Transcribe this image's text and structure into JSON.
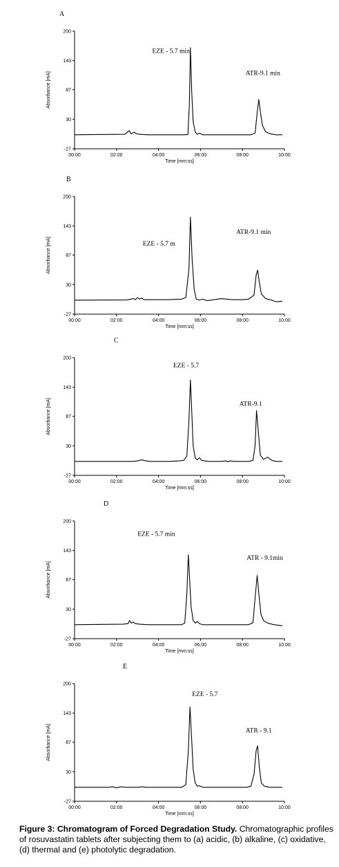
{
  "chart_data": [
    {
      "type": "line",
      "panel_label": "A",
      "xlabel": "Time [mm:ss]",
      "ylabel": "Absorbance [mA]",
      "x_ticks": [
        "00:00",
        "02:00",
        "04:00",
        "06:00",
        "08:00",
        "10:00"
      ],
      "y_ticks": [
        "200",
        "143",
        "87",
        "30",
        "-27"
      ],
      "xlim": [
        0,
        10
      ],
      "ylim": [
        -27,
        200
      ],
      "annotations": [
        {
          "text": "EZE - 5.7 min",
          "x": 3.7,
          "y": 158
        },
        {
          "text": "ATR-9.1 min",
          "x": 8.15,
          "y": 115
        }
      ],
      "series": [
        {
          "x": [
            0,
            2.4,
            2.6,
            2.7,
            2.85,
            2.95,
            3.1,
            3.5,
            4.5,
            5.2,
            5.4,
            5.47,
            5.52,
            5.58,
            5.65,
            5.75,
            5.85,
            5.95,
            6.1,
            6.5,
            7.5,
            8.4,
            8.6,
            8.72,
            8.78,
            8.85,
            8.95,
            9.1,
            9.3,
            9.6,
            9.9
          ],
          "y": [
            0,
            1,
            8,
            2,
            5,
            2,
            1,
            0,
            0,
            0,
            0.5,
            60,
            168,
            85,
            25,
            5,
            1,
            3,
            0,
            0,
            0,
            0,
            3,
            50,
            68,
            45,
            18,
            6,
            2,
            0,
            0
          ]
        }
      ]
    },
    {
      "type": "line",
      "panel_label": "B",
      "xlabel": "Time [mm:ss]",
      "ylabel": "Absorbance [mA]",
      "x_ticks": [
        "00:00",
        "02:00",
        "04:00",
        "06:00",
        "08:00",
        "10:00"
      ],
      "y_ticks": [
        "200",
        "143",
        "87",
        "30",
        "-27"
      ],
      "xlim": [
        0,
        10
      ],
      "ylim": [
        -27,
        200
      ],
      "annotations": [
        {
          "text": "EZE - 5.7 m",
          "x": 3.25,
          "y": 105
        },
        {
          "text": "ATR-9.1 min",
          "x": 7.7,
          "y": 128
        }
      ],
      "series": [
        {
          "x": [
            0,
            2.5,
            2.8,
            2.9,
            3.0,
            3.1,
            3.2,
            3.3,
            3.5,
            4.5,
            5.1,
            5.3,
            5.45,
            5.52,
            5.6,
            5.7,
            5.8,
            5.95,
            6.1,
            6.3,
            7.0,
            7.5,
            8.0,
            8.3,
            8.55,
            8.65,
            8.72,
            8.8,
            8.9,
            9.1,
            9.3,
            9.6,
            9.9
          ],
          "y": [
            0,
            0.5,
            3,
            1,
            5,
            2,
            4,
            1,
            1,
            1,
            2,
            5,
            60,
            160,
            80,
            20,
            2,
            0,
            2,
            -1,
            3,
            1,
            1,
            2,
            10,
            48,
            58,
            35,
            12,
            3,
            1,
            -3,
            -2
          ]
        }
      ]
    },
    {
      "type": "line",
      "panel_label": "C",
      "xlabel": "Time [mm:ss]",
      "ylabel": "Absorbance [mA]",
      "x_ticks": [
        "00:00",
        "02:00",
        "04:00",
        "06:00",
        "08:00",
        "10:00"
      ],
      "y_ticks": [
        "200",
        "143",
        "87",
        "30",
        "-27"
      ],
      "xlim": [
        0,
        10
      ],
      "ylim": [
        -27,
        200
      ],
      "annotations": [
        {
          "text": "EZE - 5.7",
          "x": 4.7,
          "y": 181
        },
        {
          "text": "ATR-9.1",
          "x": 7.85,
          "y": 107
        }
      ],
      "series": [
        {
          "x": [
            0,
            2.8,
            3.0,
            3.2,
            3.4,
            3.6,
            4.5,
            5.0,
            5.2,
            5.35,
            5.45,
            5.52,
            5.58,
            5.65,
            5.75,
            5.85,
            5.95,
            6.05,
            6.2,
            6.4,
            7.0,
            7.2,
            7.3,
            7.4,
            7.6,
            8.3,
            8.5,
            8.6,
            8.67,
            8.75,
            8.85,
            9.0,
            9.2,
            9.4,
            9.6,
            9.9
          ],
          "y": [
            0,
            0,
            1,
            3,
            1,
            0,
            0,
            1,
            2,
            10,
            80,
            157,
            100,
            30,
            6,
            3,
            7,
            2,
            1,
            0,
            0,
            1,
            -1,
            1,
            0,
            0,
            2,
            30,
            98,
            60,
            12,
            4,
            8,
            2,
            0,
            0
          ]
        }
      ]
    },
    {
      "type": "line",
      "panel_label": "D",
      "xlabel": "Time [mm:ss]",
      "ylabel": "Absorbance [mA]",
      "x_ticks": [
        "00:00",
        "02:00",
        "04:00",
        "06:00",
        "08:00",
        "10:00"
      ],
      "y_ticks": [
        "200",
        "143",
        "87",
        "30",
        "-27"
      ],
      "xlim": [
        0,
        10
      ],
      "ylim": [
        -27,
        200
      ],
      "annotations": [
        {
          "text": "EZE - 5.7 min",
          "x": 3.0,
          "y": 171
        },
        {
          "text": "ATR - 9.1min",
          "x": 8.2,
          "y": 125
        }
      ],
      "series": [
        {
          "x": [
            0,
            2.3,
            2.55,
            2.62,
            2.7,
            2.8,
            2.9,
            3.1,
            3.5,
            4.5,
            5.1,
            5.25,
            5.35,
            5.42,
            5.48,
            5.55,
            5.65,
            5.75,
            5.85,
            5.95,
            6.1,
            6.5,
            7.5,
            8.3,
            8.5,
            8.62,
            8.7,
            8.78,
            8.88,
            9.0,
            9.2,
            9.5,
            9.9
          ],
          "y": [
            0,
            1,
            2,
            8,
            3,
            5,
            2,
            1,
            0,
            0,
            0,
            3,
            60,
            135,
            90,
            35,
            8,
            3,
            6,
            2,
            0,
            0,
            0,
            0,
            4,
            60,
            95,
            60,
            20,
            8,
            3,
            0,
            -2
          ]
        }
      ]
    },
    {
      "type": "line",
      "panel_label": "E",
      "xlabel": "Time [mm:ss]",
      "ylabel": "Absorbance [mA]",
      "x_ticks": [
        "00:00",
        "02:00",
        "04:00",
        "06:00",
        "08:00",
        "10:00"
      ],
      "y_ticks": [
        "200",
        "143",
        "87",
        "30",
        "-27"
      ],
      "xlim": [
        0,
        10
      ],
      "ylim": [
        -27,
        200
      ],
      "annotations": [
        {
          "text": "EZE - 5.7",
          "x": 5.6,
          "y": 176
        },
        {
          "text": "ATR - 9.1",
          "x": 8.15,
          "y": 106
        }
      ],
      "series": [
        {
          "x": [
            0,
            1.6,
            1.8,
            2.0,
            2.2,
            2.5,
            3.0,
            3.2,
            3.4,
            3.8,
            4.5,
            5.1,
            5.3,
            5.42,
            5.5,
            5.57,
            5.65,
            5.75,
            5.85,
            5.95,
            6.1,
            6.5,
            7.5,
            8.2,
            8.4,
            8.55,
            8.65,
            8.72,
            8.8,
            8.9,
            9.05,
            9.3,
            9.6,
            9.9
          ],
          "y": [
            0,
            0,
            1,
            -1,
            1,
            0,
            0,
            1,
            0,
            0,
            0,
            0,
            5,
            70,
            155,
            100,
            35,
            8,
            2,
            3,
            0,
            0,
            0,
            0,
            2,
            25,
            70,
            80,
            40,
            8,
            2,
            0,
            0,
            0
          ]
        }
      ]
    }
  ],
  "caption": {
    "bold": "Figure 3: Chromatogram of Forced Degradation Study.",
    "text": " Chromatographic profiles of rosuvastatin tablets after subjecting them to (a) acidic, (b) alkaline, (c) oxidative, (d) thermal and (e) photolytic degradation."
  }
}
